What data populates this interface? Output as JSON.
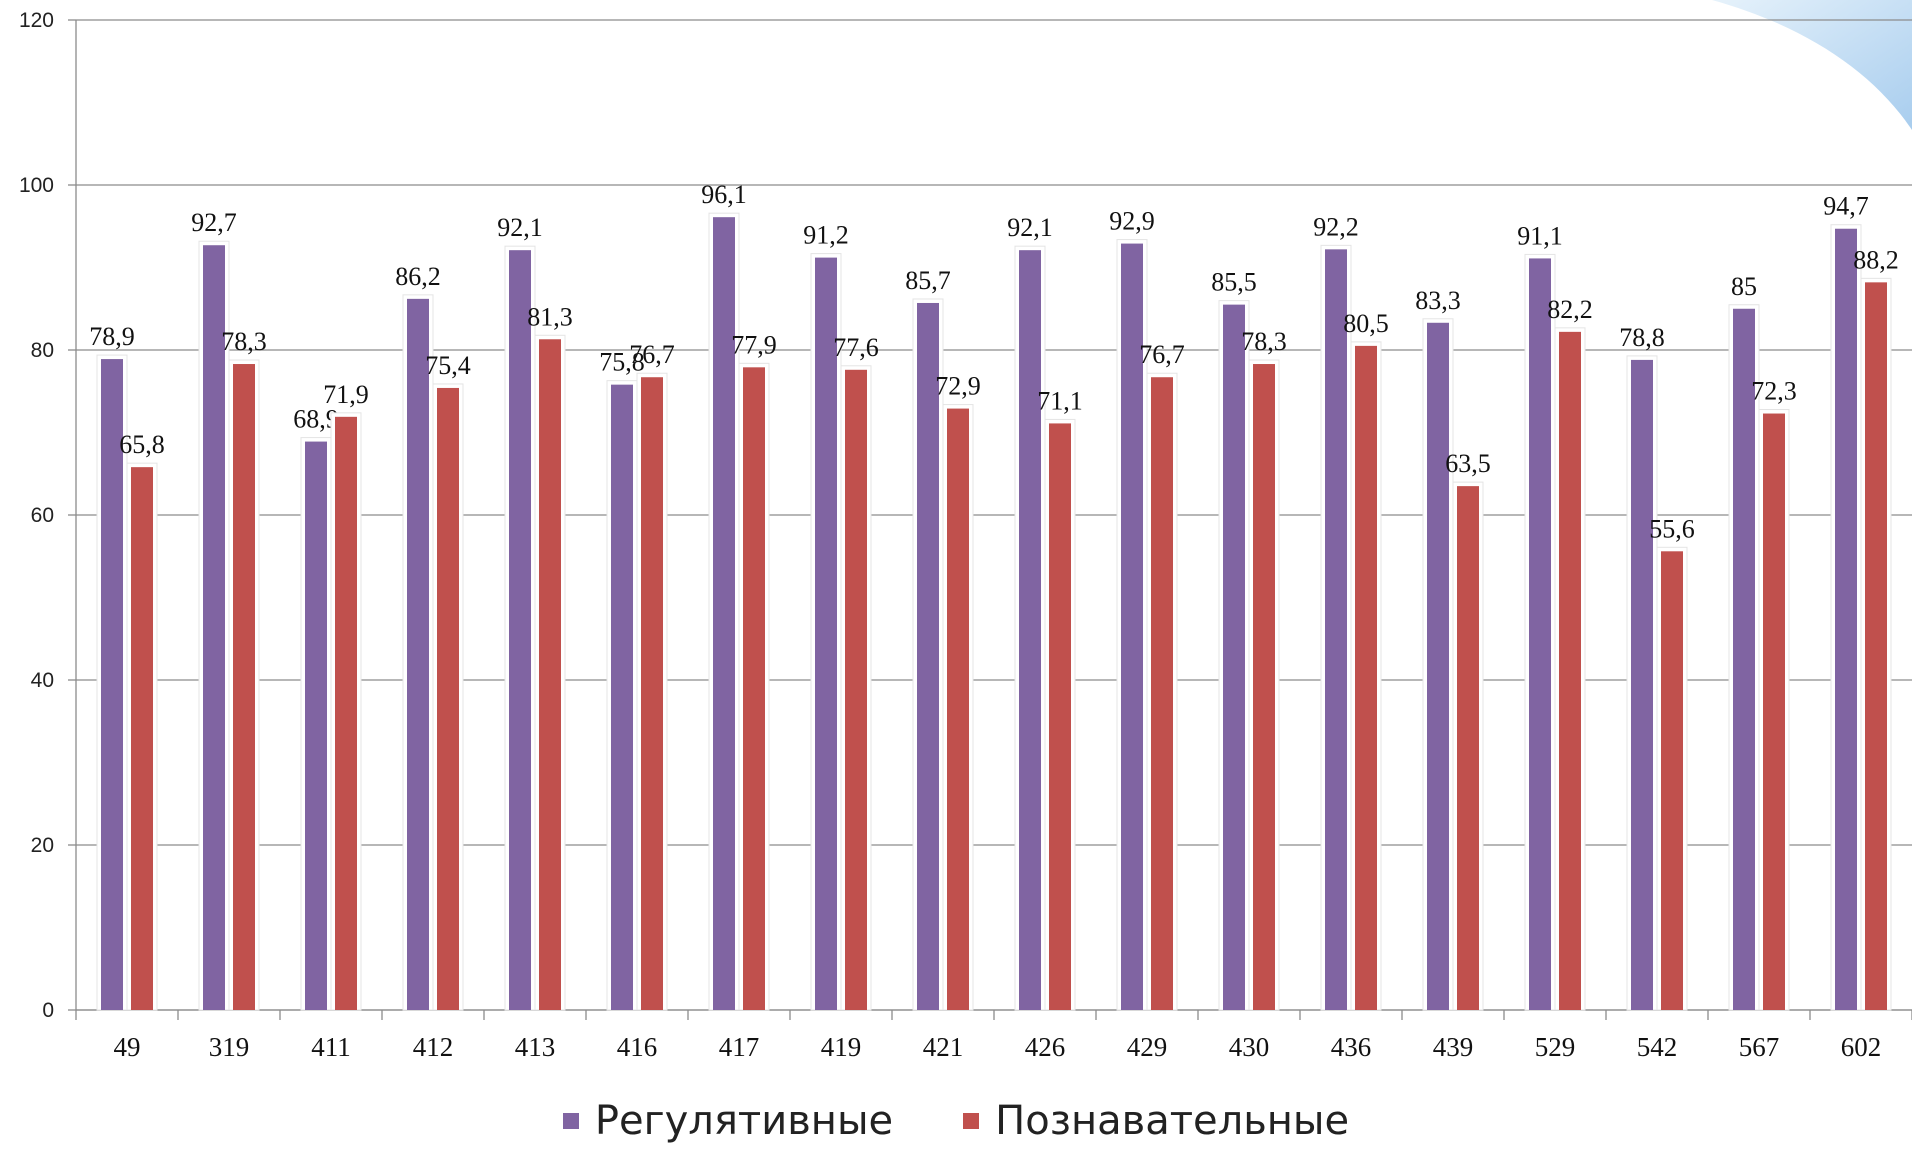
{
  "chart_data": {
    "type": "bar",
    "title": "",
    "xlabel": "",
    "ylabel": "",
    "ylim": [
      0,
      120
    ],
    "yticks": [
      0,
      20,
      40,
      60,
      80,
      100,
      120
    ],
    "grid": true,
    "legend_position": "bottom",
    "categories": [
      "49",
      "319",
      "411",
      "412",
      "413",
      "416",
      "417",
      "419",
      "421",
      "426",
      "429",
      "430",
      "436",
      "439",
      "529",
      "542",
      "567",
      "602"
    ],
    "series": [
      {
        "name": "Регулятивные",
        "color": "#8064a2",
        "values": [
          78.9,
          92.7,
          68.9,
          86.2,
          92.1,
          75.8,
          96.1,
          91.2,
          85.7,
          92.1,
          92.9,
          85.5,
          92.2,
          83.3,
          91.1,
          78.8,
          85,
          94.7
        ],
        "labels": [
          "78,9",
          "92,7",
          "68,9",
          "86,2",
          "92,1",
          "75,8",
          "96,1",
          "91,2",
          "85,7",
          "92,1",
          "92,9",
          "85,5",
          "92,2",
          "83,3",
          "91,1",
          "78,8",
          "85",
          "94,7"
        ]
      },
      {
        "name": "Познавательные",
        "color": "#c0504d",
        "values": [
          65.8,
          78.3,
          71.9,
          75.4,
          81.3,
          76.7,
          77.9,
          77.6,
          72.9,
          71.1,
          76.7,
          78.3,
          80.5,
          63.5,
          82.2,
          55.6,
          72.3,
          88.2
        ],
        "labels": [
          "65,8",
          "78,3",
          "71,9",
          "75,4",
          "81,3",
          "76,7",
          "77,9",
          "77,6",
          "72,9",
          "71,1",
          "76,7",
          "78,3",
          "80,5",
          "63,5",
          "82,2",
          "55,6",
          "72,3",
          "88,2"
        ]
      }
    ]
  }
}
